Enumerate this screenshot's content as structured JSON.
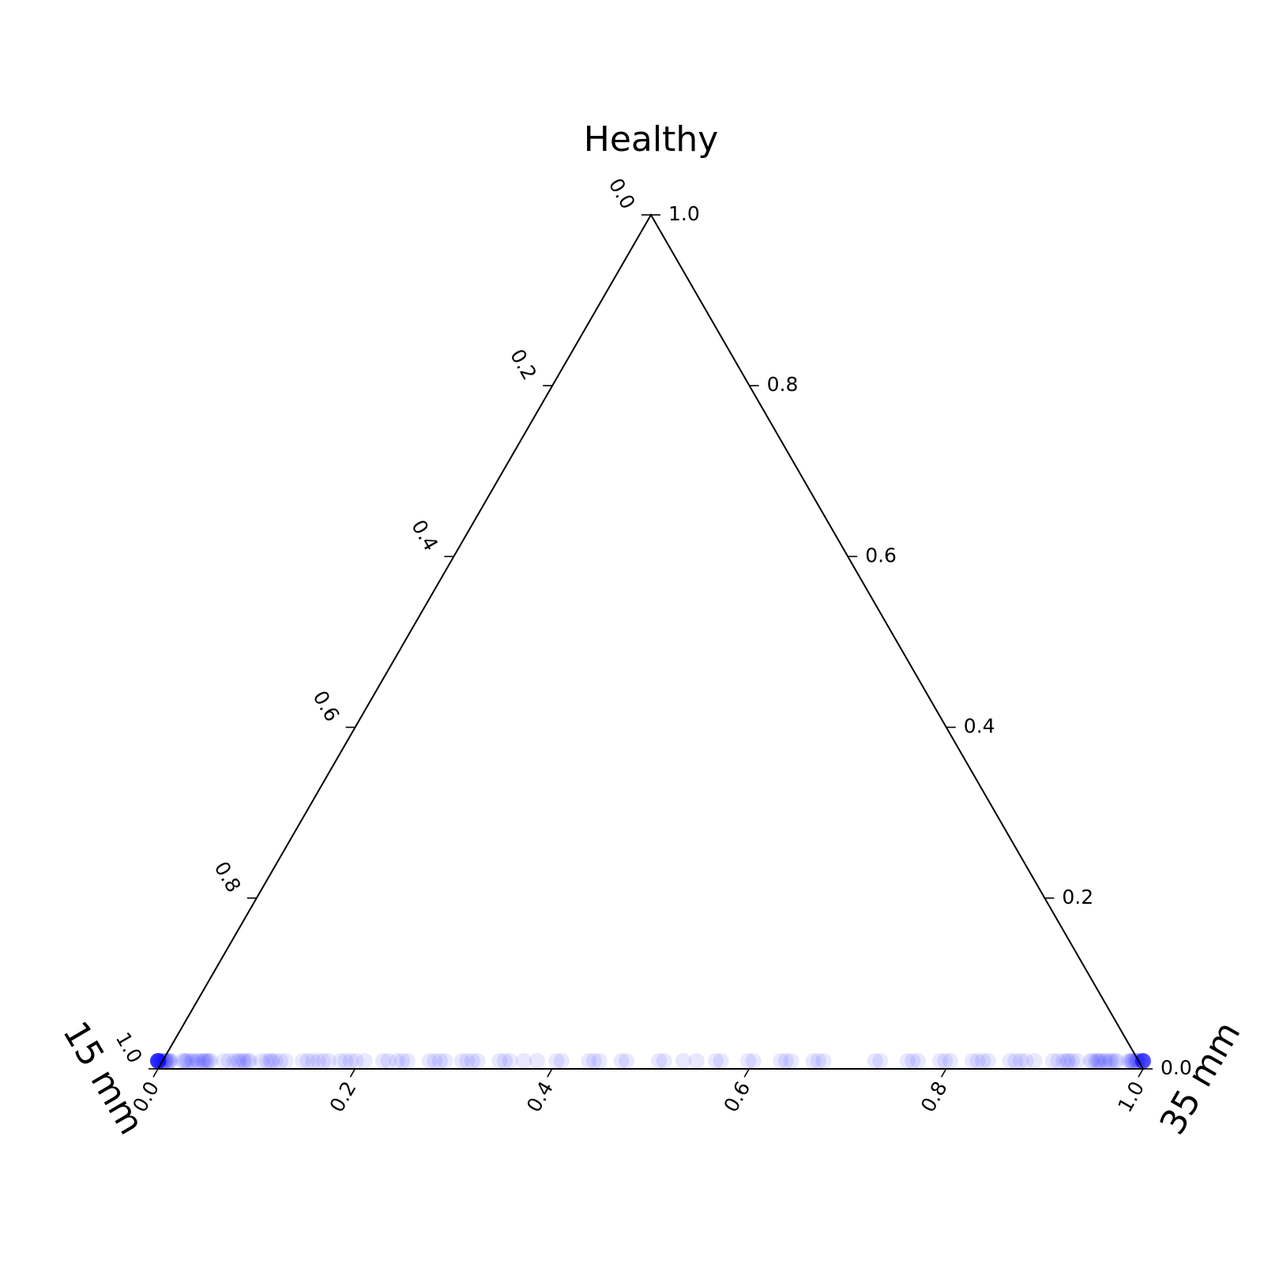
{
  "chart_data": {
    "type": "ternary-scatter",
    "vertex_labels": {
      "top": "Healthy",
      "left": "15 mm",
      "right": "35 mm"
    },
    "axes": {
      "bottom": {
        "ticks": [
          "0.0",
          "0.2",
          "0.4",
          "0.6",
          "0.8",
          "1.0"
        ],
        "range": [
          0,
          1
        ]
      },
      "left": {
        "ticks": [
          "0.0",
          "0.2",
          "0.4",
          "0.6",
          "0.8",
          "1.0"
        ],
        "range": [
          0,
          1
        ]
      },
      "right": {
        "ticks": [
          "0.0",
          "0.2",
          "0.4",
          "0.6",
          "0.8",
          "1.0"
        ],
        "range": [
          0,
          1
        ]
      }
    },
    "grid": false,
    "marker_color": "#0000ff",
    "series": [
      {
        "points": [
          {
            "b": 0.0,
            "r": 0.0,
            "n": 28
          },
          {
            "b": 0.04,
            "r": 0.0,
            "n": 14
          },
          {
            "b": 0.08,
            "r": 0.0,
            "n": 9
          },
          {
            "b": 0.12,
            "r": 0.0,
            "n": 7
          },
          {
            "b": 0.16,
            "r": 0.0,
            "n": 6
          },
          {
            "b": 0.2,
            "r": 0.0,
            "n": 5
          },
          {
            "b": 0.24,
            "r": 0.0,
            "n": 5
          },
          {
            "b": 0.28,
            "r": 0.0,
            "n": 4
          },
          {
            "b": 0.32,
            "r": 0.0,
            "n": 4
          },
          {
            "b": 0.36,
            "r": 0.0,
            "n": 4
          },
          {
            "b": 0.4,
            "r": 0.0,
            "n": 3
          },
          {
            "b": 0.44,
            "r": 0.0,
            "n": 3
          },
          {
            "b": 0.48,
            "r": 0.0,
            "n": 2
          },
          {
            "b": 0.52,
            "r": 0.0,
            "n": 3
          },
          {
            "b": 0.56,
            "r": 0.0,
            "n": 3
          },
          {
            "b": 0.6,
            "r": 0.0,
            "n": 2
          },
          {
            "b": 0.64,
            "r": 0.0,
            "n": 3
          },
          {
            "b": 0.68,
            "r": 0.0,
            "n": 3
          },
          {
            "b": 0.72,
            "r": 0.0,
            "n": 2
          },
          {
            "b": 0.76,
            "r": 0.0,
            "n": 3
          },
          {
            "b": 0.8,
            "r": 0.0,
            "n": 3
          },
          {
            "b": 0.84,
            "r": 0.0,
            "n": 4
          },
          {
            "b": 0.88,
            "r": 0.0,
            "n": 5
          },
          {
            "b": 0.92,
            "r": 0.0,
            "n": 7
          },
          {
            "b": 0.96,
            "r": 0.0,
            "n": 12
          },
          {
            "b": 1.0,
            "r": 0.0,
            "n": 22
          }
        ]
      }
    ]
  }
}
